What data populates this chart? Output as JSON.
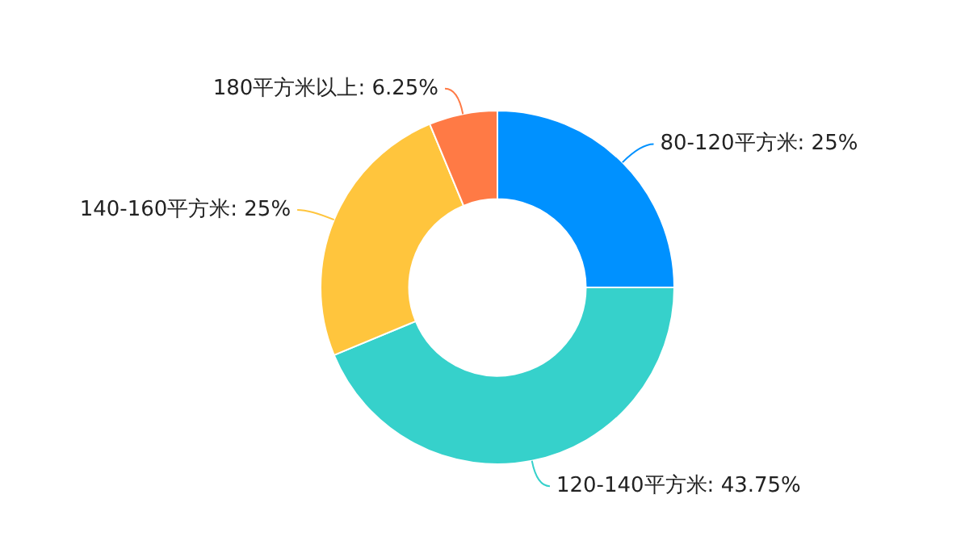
{
  "chart_data": {
    "type": "donut",
    "categories": [
      "80-120平方米",
      "120-140平方米",
      "140-160平方米",
      "180平方米以上"
    ],
    "values": [
      25,
      43.75,
      25,
      6.25
    ],
    "value_labels": [
      "25%",
      "43.75%",
      "25%",
      "6.25%"
    ],
    "colors": [
      "#0091ff",
      "#36d1cb",
      "#ffc53d",
      "#ff7a45"
    ],
    "legend": false
  }
}
